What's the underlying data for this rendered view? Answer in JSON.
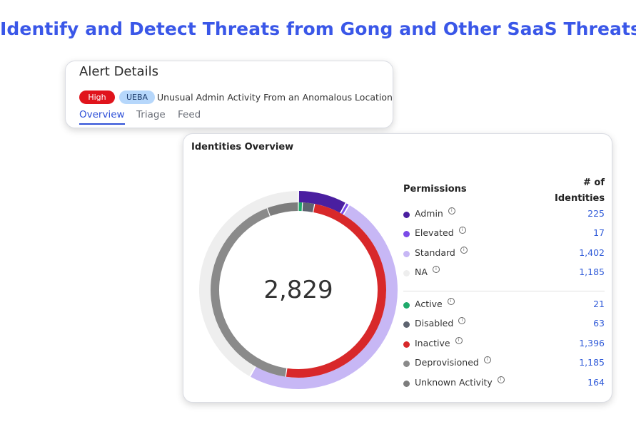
{
  "headline": "Identify and Detect Threats from Gong and Other SaaS Threats",
  "alert": {
    "title": "Alert Details",
    "severity": "High",
    "type": "UEBA",
    "description": "Unusual Admin Activity From an Anomalous Location",
    "tabs": [
      "Overview",
      "Triage",
      "Feed"
    ],
    "active_tab": "Overview"
  },
  "identities": {
    "title": "Identities Overview",
    "total": "2,829",
    "permissions_header": "Permissions",
    "count_header": "# of Identities",
    "permissions": [
      {
        "label": "Admin",
        "value": "225",
        "color": "#4a1fa0"
      },
      {
        "label": "Elevated",
        "value": "17",
        "color": "#7b4be8"
      },
      {
        "label": "Standard",
        "value": "1,402",
        "color": "#c7b7f5"
      },
      {
        "label": "NA",
        "value": "1,185",
        "color": "#eeeeee"
      }
    ],
    "activity": [
      {
        "label": "Active",
        "value": "21",
        "color": "#1faa6b"
      },
      {
        "label": "Disabled",
        "value": "63",
        "color": "#5e6470"
      },
      {
        "label": "Inactive",
        "value": "1,396",
        "color": "#d8282a"
      },
      {
        "label": "Deprovisioned",
        "value": "1,185",
        "color": "#8a8a8a"
      },
      {
        "label": "Unknown Activity",
        "value": "164",
        "color": "#7d7d7d"
      }
    ]
  }
}
